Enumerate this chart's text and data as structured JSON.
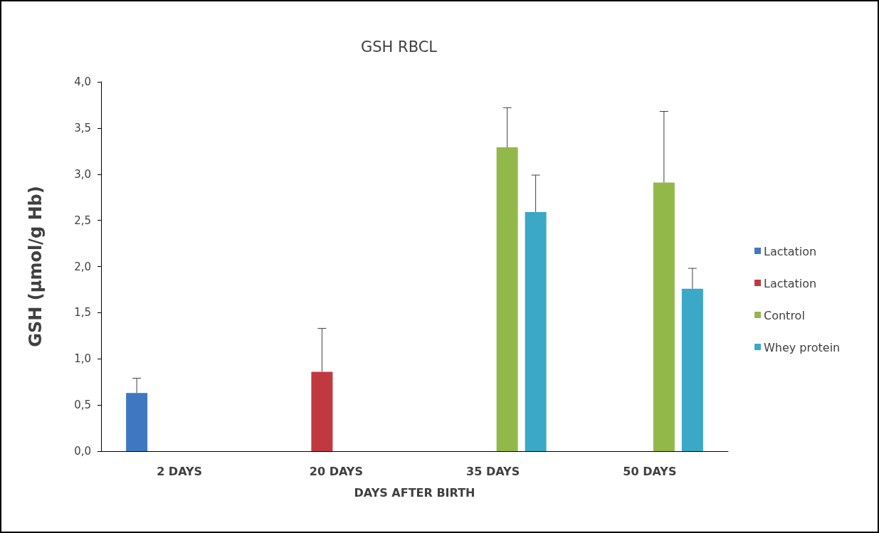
{
  "chart_data": {
    "type": "bar",
    "title": "GSH RBCL",
    "xlabel": "DAYS AFTER BIRTH",
    "ylabel": "GSH (µmol/g Hb)",
    "categories": [
      "2 DAYS",
      "20 DAYS",
      "35 DAYS",
      "50 DAYS"
    ],
    "series": [
      {
        "name": "Lactation",
        "color": "#3f78c0",
        "values": [
          0.63,
          null,
          null,
          null
        ],
        "errors": [
          [
            0.63,
            0.79
          ],
          null,
          null,
          null
        ]
      },
      {
        "name": "Lactation",
        "color": "#c0393f",
        "values": [
          null,
          0.86,
          null,
          null
        ],
        "errors": [
          null,
          [
            0.86,
            1.33
          ],
          null,
          null
        ]
      },
      {
        "name": "Control",
        "color": "#93b84a",
        "values": [
          null,
          null,
          3.29,
          2.91
        ],
        "errors": [
          null,
          null,
          [
            3.29,
            3.72
          ],
          [
            2.91,
            3.68
          ]
        ]
      },
      {
        "name": "Whey protein",
        "color": "#3aa8c6",
        "values": [
          null,
          null,
          2.59,
          1.76
        ],
        "errors": [
          null,
          null,
          [
            2.59,
            2.99
          ],
          [
            1.76,
            1.98
          ]
        ]
      }
    ],
    "ylim": [
      0,
      4
    ],
    "yticks": [
      {
        "value": 0,
        "label": "0,0"
      },
      {
        "value": 0.5,
        "label": "0,5"
      },
      {
        "value": 1,
        "label": "1,0"
      },
      {
        "value": 1.5,
        "label": "1,5"
      },
      {
        "value": 2,
        "label": "2,0"
      },
      {
        "value": 2.5,
        "label": "2,5"
      },
      {
        "value": 3,
        "label": "3,0"
      },
      {
        "value": 3.5,
        "label": "3,5"
      },
      {
        "value": 4,
        "label": "4,0"
      }
    ],
    "grid": false,
    "legend": "right"
  }
}
